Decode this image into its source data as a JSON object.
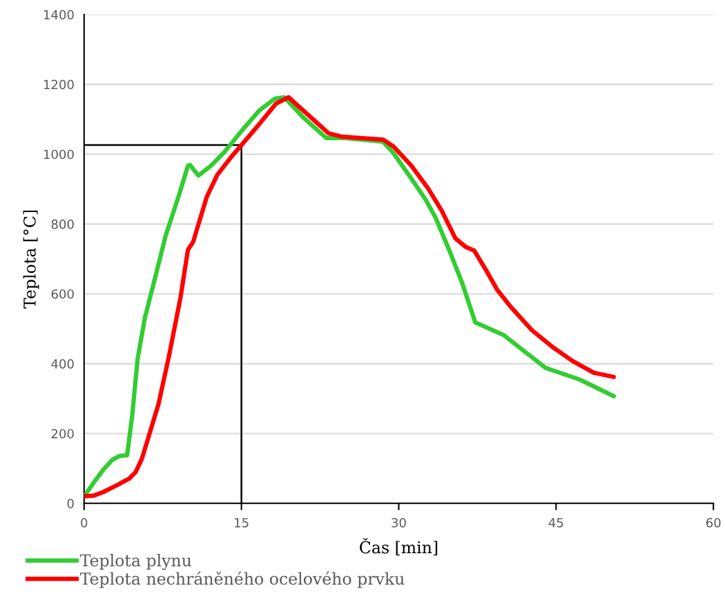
{
  "chart_data": {
    "type": "line",
    "xlabel": "Čas [min]",
    "ylabel": "Teplota [°C]",
    "xlim": [
      0,
      60
    ],
    "ylim": [
      0,
      1400
    ],
    "xticks": [
      0,
      15,
      30,
      45,
      60
    ],
    "yticks": [
      0,
      200,
      400,
      600,
      800,
      1000,
      1200,
      1400
    ],
    "grid": "y",
    "legend": "bottom left",
    "line_style": "solid",
    "marker": "none",
    "series": [
      {
        "name": "Teplota plynu",
        "color": "#33cc33",
        "x": [
          0,
          0.86,
          1.84,
          2.7,
          3.4,
          4.1,
          4.6,
          5.1,
          5.8,
          6.8,
          7.8,
          9.1,
          9.9,
          10.1,
          10.9,
          12.1,
          13.4,
          15.0,
          16.7,
          18.2,
          19.1,
          20.9,
          23.1,
          24.9,
          28.5,
          29.5,
          31.5,
          32.6,
          33.5,
          34.8,
          36.0,
          37.3,
          40.0,
          44.0,
          47.3,
          50.5
        ],
        "values": [
          20,
          57,
          97,
          125,
          136,
          138,
          255,
          413,
          532,
          650,
          769,
          888,
          967,
          969,
          939,
          967,
          1007,
          1066,
          1125,
          1159,
          1163,
          1105,
          1046,
          1046,
          1036,
          1003,
          917,
          868,
          819,
          726,
          635,
          518,
          482,
          388,
          354,
          307
        ]
      },
      {
        "name": "Teplota nechráněného ocelového prvku",
        "color": "#ff0000",
        "x": [
          0,
          0.9,
          1.8,
          3.2,
          4.3,
          4.9,
          5.5,
          6.1,
          7.1,
          8.1,
          9.2,
          9.9,
          10.4,
          10.9,
          11.7,
          12.7,
          14.0,
          15.0,
          16.7,
          18.3,
          19.5,
          20.9,
          23.3,
          24.6,
          28.5,
          29.5,
          31.2,
          32.8,
          34.1,
          35.4,
          36.4,
          37.2,
          38.4,
          39.4,
          40.7,
          42.7,
          44.7,
          46.6,
          48.6,
          50.5
        ],
        "values": [
          20,
          22,
          32,
          53,
          71,
          89,
          127,
          186,
          285,
          423,
          591,
          726,
          749,
          799,
          878,
          941,
          991,
          1026,
          1086,
          1145,
          1163,
          1125,
          1060,
          1050,
          1042,
          1022,
          967,
          902,
          838,
          759,
          734,
          724,
          664,
          611,
          562,
          496,
          447,
          407,
          374,
          362
        ]
      },
      {
        "color": "#000000",
        "x": [
          0,
          15,
          15
        ],
        "values": [
          1026,
          1026,
          0
        ]
      }
    ]
  }
}
